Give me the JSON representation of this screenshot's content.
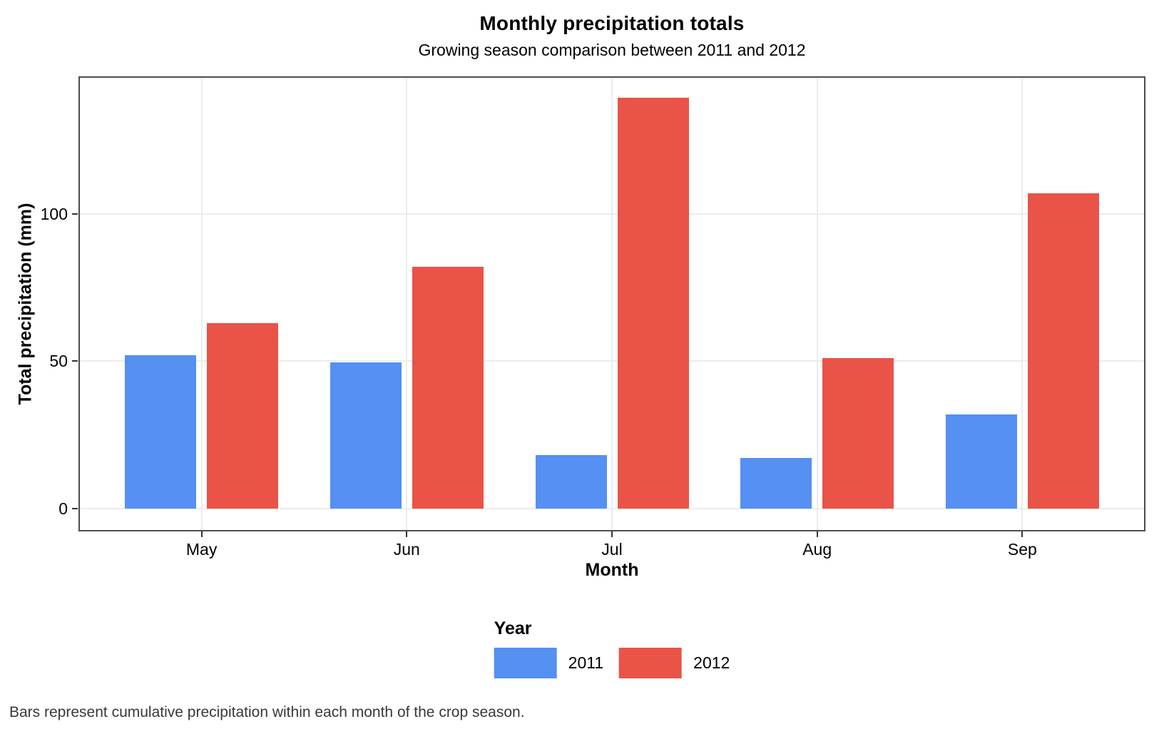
{
  "title": "Monthly precipitation totals",
  "subtitle": "Growing season comparison between 2011 and 2012",
  "caption": "Bars represent cumulative precipitation within each month of the crop season.",
  "x_axis": {
    "label": "Month",
    "tick_labels": [
      "May",
      "Jun",
      "Jul",
      "Aug",
      "Sep"
    ]
  },
  "y_axis": {
    "label": "Total precipitation (mm)",
    "tick_labels": [
      "0",
      "50",
      "100"
    ],
    "tick_values": [
      0,
      50,
      100
    ]
  },
  "legend": {
    "title": "Year",
    "entries": [
      {
        "label": "2011",
        "color": "#5590F2"
      },
      {
        "label": "2012",
        "color": "#EA5348"
      }
    ],
    "position": "bottom"
  },
  "colors": {
    "series_2011": "#5590F2",
    "series_2012": "#EA5348",
    "panel_border": "#4d4d4d",
    "gridline": "#ececec",
    "tick_mark": "#333333",
    "caption_text": "#383838",
    "background": "#ffffff"
  },
  "chart_data": {
    "type": "bar",
    "title": "Monthly precipitation totals",
    "subtitle": "Growing season comparison between 2011 and 2012",
    "xlabel": "Month",
    "ylabel": "Total precipitation (mm)",
    "categories": [
      "May",
      "Jun",
      "Jul",
      "Aug",
      "Sep"
    ],
    "series": [
      {
        "name": "2011",
        "color": "#5590F2",
        "values": [
          52,
          49.5,
          18,
          17,
          32
        ]
      },
      {
        "name": "2012",
        "color": "#EA5348",
        "values": [
          63,
          82,
          139.5,
          51,
          107
        ]
      }
    ],
    "yticks": [
      0,
      50,
      100
    ],
    "ylim": [
      -6.8,
      146.8
    ],
    "grid": true,
    "legend_position": "bottom",
    "caption": "Bars represent cumulative precipitation within each month of the crop season."
  }
}
